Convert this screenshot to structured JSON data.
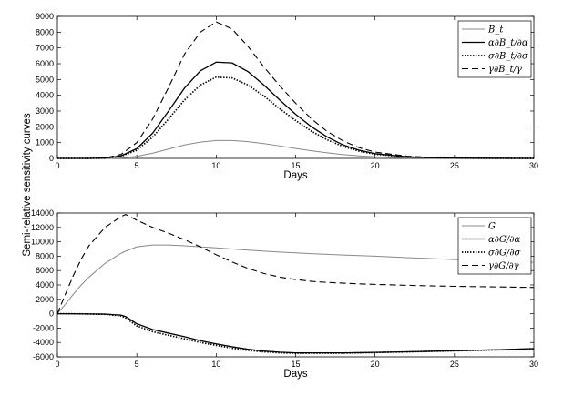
{
  "figure": {
    "ylabel": "Semi-relative sensitivity curves"
  },
  "chart_data": [
    {
      "type": "line",
      "xlabel": "Days",
      "xlim": [
        0,
        30
      ],
      "ylim": [
        0,
        9000
      ],
      "xticks": [
        "0",
        "5",
        "10",
        "15",
        "20",
        "25",
        "30"
      ],
      "yticks": [
        "0",
        "1000",
        "2000",
        "3000",
        "4000",
        "5000",
        "6000",
        "7000",
        "8000",
        "9000"
      ],
      "grid": false,
      "legend": "top-right",
      "x": [
        0,
        2,
        3,
        4,
        5,
        6,
        7,
        8,
        9,
        10,
        11,
        12,
        13,
        14,
        15,
        16,
        17,
        18,
        19,
        20,
        22,
        24,
        26,
        28,
        30
      ],
      "series": [
        {
          "name": "B_t",
          "style": "solid-gray",
          "color": "#888888",
          "values": [
            0,
            0,
            5,
            30,
            130,
            330,
            590,
            850,
            1030,
            1130,
            1130,
            1060,
            940,
            790,
            630,
            480,
            350,
            240,
            160,
            100,
            40,
            15,
            5,
            2,
            0
          ]
        },
        {
          "name": "α∂B_t/∂α",
          "style": "solid",
          "color": "#000000",
          "values": [
            0,
            0,
            20,
            160,
            620,
            1600,
            3000,
            4450,
            5550,
            6100,
            6050,
            5500,
            4650,
            3700,
            2800,
            2000,
            1350,
            850,
            520,
            300,
            100,
            30,
            10,
            3,
            0
          ]
        },
        {
          "name": "σ∂B_t/∂σ",
          "style": "dotted",
          "color": "#000000",
          "values": [
            0,
            0,
            15,
            130,
            520,
            1350,
            2500,
            3700,
            4650,
            5150,
            5100,
            4650,
            3950,
            3150,
            2400,
            1720,
            1170,
            750,
            460,
            270,
            90,
            30,
            10,
            3,
            0
          ]
        },
        {
          "name": "γ∂B_t/γ",
          "style": "dashed",
          "color": "#000000",
          "values": [
            0,
            0,
            30,
            250,
            1000,
            2500,
            4500,
            6600,
            8000,
            8650,
            8200,
            7100,
            5800,
            4600,
            3500,
            2500,
            1700,
            1100,
            680,
            400,
            140,
            45,
            15,
            5,
            0
          ]
        }
      ]
    },
    {
      "type": "line",
      "xlabel": "Days",
      "xlim": [
        0,
        30
      ],
      "ylim": [
        -6000,
        14000
      ],
      "xticks": [
        "0",
        "5",
        "10",
        "15",
        "20",
        "25",
        "30"
      ],
      "yticks": [
        "-6000",
        "-4000",
        "-2000",
        "0",
        "2000",
        "4000",
        "6000",
        "8000",
        "10000",
        "12000",
        "14000"
      ],
      "grid": false,
      "legend": "top-right",
      "x": [
        0,
        0.5,
        1,
        1.5,
        2,
        3,
        4,
        4.3,
        5,
        6,
        7,
        8,
        9,
        10,
        11,
        12,
        13,
        14,
        15,
        16,
        17,
        18,
        19,
        20,
        22,
        24,
        26,
        28,
        30
      ],
      "series": [
        {
          "name": "G",
          "style": "solid-gray",
          "color": "#888888",
          "values": [
            0,
            1300,
            2700,
            4000,
            5100,
            7000,
            8400,
            8700,
            9300,
            9550,
            9550,
            9450,
            9300,
            9150,
            9000,
            8850,
            8700,
            8580,
            8460,
            8350,
            8250,
            8160,
            8080,
            8000,
            7800,
            7620,
            7450,
            7300,
            7150
          ]
        },
        {
          "name": "α∂G/∂α",
          "style": "solid",
          "color": "#000000",
          "values": [
            0,
            0,
            -10,
            -20,
            -30,
            -60,
            -200,
            -400,
            -1400,
            -2200,
            -2700,
            -3200,
            -3750,
            -4200,
            -4600,
            -4950,
            -5200,
            -5350,
            -5450,
            -5450,
            -5450,
            -5450,
            -5420,
            -5380,
            -5300,
            -5200,
            -5100,
            -5000,
            -4850
          ]
        },
        {
          "name": "σ∂G/∂σ",
          "style": "dotted",
          "color": "#000000",
          "values": [
            0,
            0,
            -10,
            -20,
            -40,
            -80,
            -300,
            -600,
            -1700,
            -2500,
            -3000,
            -3500,
            -4000,
            -4400,
            -4800,
            -5100,
            -5300,
            -5450,
            -5500,
            -5500,
            -5500,
            -5480,
            -5450,
            -5400,
            -5320,
            -5220,
            -5120,
            -5020,
            -4900
          ]
        },
        {
          "name": "γ∂G/∂γ",
          "style": "dashed",
          "color": "#000000",
          "values": [
            0,
            2700,
            5300,
            7600,
            9500,
            12000,
            13500,
            13800,
            13000,
            12000,
            11200,
            10300,
            9300,
            8200,
            7200,
            6300,
            5600,
            5100,
            4750,
            4500,
            4350,
            4250,
            4150,
            4080,
            3950,
            3850,
            3780,
            3720,
            3650
          ]
        }
      ]
    }
  ]
}
